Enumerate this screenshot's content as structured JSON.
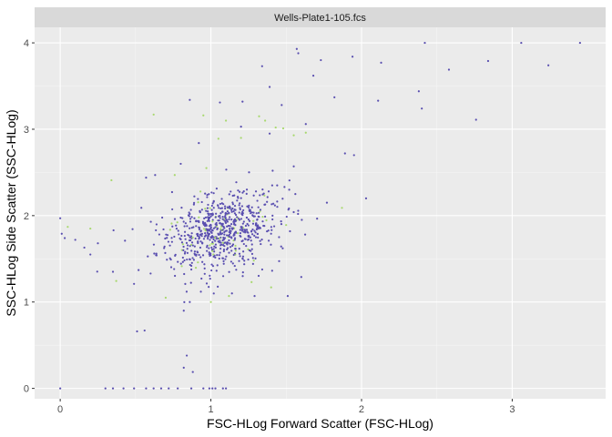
{
  "chart_data": {
    "type": "scatter",
    "title": "Wells-Plate1-105.fcs",
    "xlabel": "FSC-HLog Forward Scatter (FSC-HLog)",
    "ylabel": "SSC-HLog Side Scatter (SSC-HLog)",
    "xlim": [
      -0.17,
      3.62
    ],
    "ylim": [
      -0.12,
      4.18
    ],
    "xticks": [
      0,
      1,
      2,
      3
    ],
    "yticks": [
      0,
      1,
      2,
      3,
      4
    ],
    "grid": true,
    "legend": "none",
    "colors": {
      "panel_background": "#ebebeb",
      "grid_major": "#ffffff",
      "grid_minor": "#f5f5f5",
      "strip_background": "#d9d9d9",
      "main_points": "#5a4fb0",
      "highlight_points": "#a8d86e"
    },
    "series": [
      {
        "color": "#5a4fb0",
        "x": [
          3.45,
          3.06,
          2.42,
          2.84,
          3.24,
          2.58,
          2.76,
          1.94,
          2.13,
          1.73,
          1.68,
          1.57,
          1.34,
          1.39,
          1.21,
          1.58,
          1.63,
          1.89,
          1.95,
          2.03,
          2.38,
          2.4,
          1.82,
          1.47,
          1.55,
          1.52,
          1.44,
          1.41,
          1.77,
          2.11,
          0.86,
          0.84,
          0.82,
          0.88,
          0.62,
          0.57,
          0.35,
          0.3,
          0.2,
          0.16,
          0.1,
          0.03,
          0.0,
          0.01,
          0.0,
          0.42,
          0.49,
          0.51,
          0.56,
          0.67,
          0.72,
          0.78,
          0.87,
          0.95,
          0.99,
          1.03,
          1.01,
          1.08,
          1.1,
          0.49,
          0.52,
          0.6,
          0.82,
          0.86,
          1.14,
          1.29,
          1.51,
          1.6,
          1.39,
          0.35,
          0.25,
          0.43,
          0.57,
          0.63,
          1.06,
          1.2,
          0.92,
          0.8
        ],
        "y": [
          4.0,
          4.0,
          4.0,
          3.79,
          3.74,
          3.69,
          3.11,
          3.84,
          3.77,
          3.8,
          3.62,
          3.93,
          3.73,
          3.49,
          3.32,
          3.88,
          3.06,
          2.72,
          2.7,
          2.2,
          3.44,
          3.24,
          3.37,
          3.28,
          2.57,
          2.3,
          2.35,
          2.52,
          2.15,
          3.33,
          3.34,
          0.38,
          0.24,
          0.19,
          0.0,
          0.0,
          0.0,
          0.0,
          1.55,
          1.63,
          1.72,
          1.74,
          1.97,
          1.79,
          0.0,
          0.0,
          0.0,
          0.66,
          0.67,
          0.0,
          0.0,
          0.0,
          0.0,
          0.0,
          0.0,
          0.0,
          0.0,
          0.0,
          0.0,
          1.21,
          1.37,
          1.33,
          0.9,
          1.0,
          1.1,
          1.07,
          1.07,
          1.29,
          2.95,
          1.35,
          1.68,
          1.71,
          2.44,
          2.47,
          3.31,
          3.03,
          2.84,
          2.6
        ]
      },
      {
        "color": "#a8d86e",
        "x": [
          0.62,
          0.95,
          1.1,
          1.32,
          1.36,
          1.43,
          1.48,
          1.55,
          1.2,
          1.05,
          0.97,
          0.76,
          0.34,
          0.2,
          0.05,
          1.0,
          1.12,
          1.27,
          1.4,
          1.63,
          1.87,
          0.92,
          1.17,
          0.7
        ],
        "y": [
          3.17,
          3.16,
          3.1,
          3.15,
          3.1,
          3.02,
          3.01,
          2.93,
          2.9,
          2.89,
          2.55,
          2.47,
          2.41,
          1.85,
          1.87,
          1.0,
          1.07,
          1.23,
          1.17,
          2.96,
          2.09,
          1.98,
          1.95,
          1.05
        ]
      }
    ]
  }
}
